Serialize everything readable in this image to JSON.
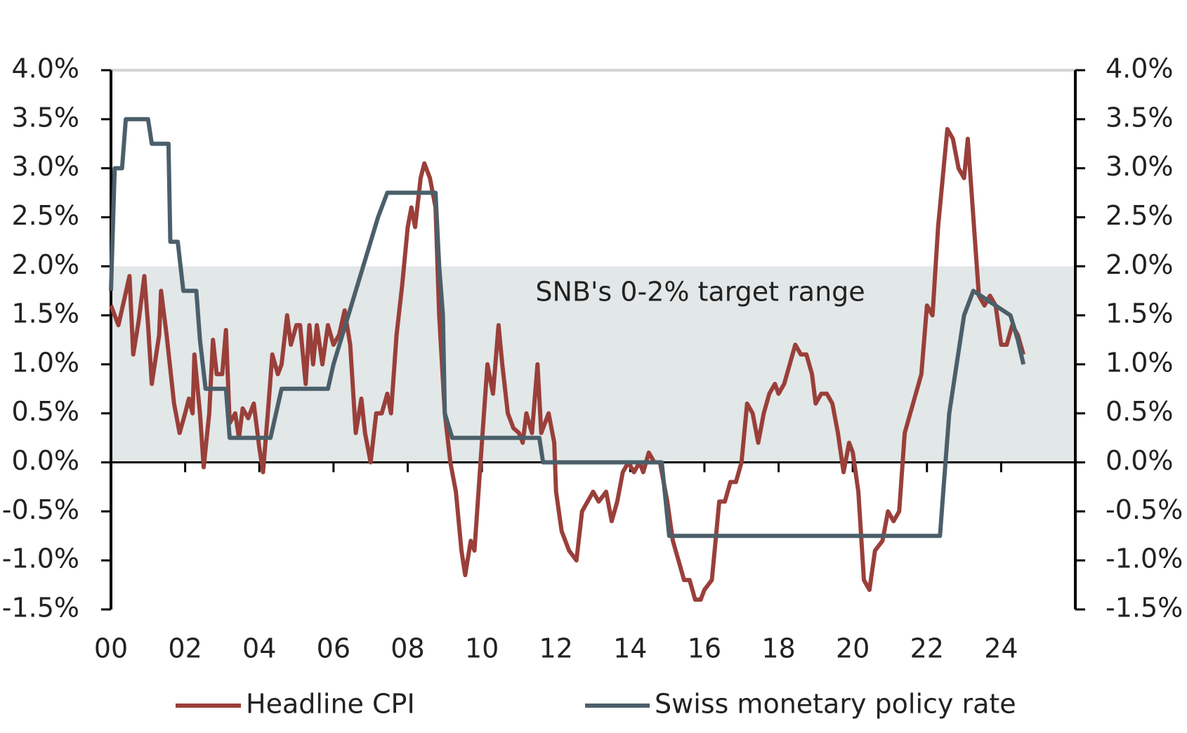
{
  "chart_data": {
    "type": "line",
    "annotation": "SNB's 0-2% target range",
    "target_band": {
      "range": [
        0,
        2
      ],
      "color": "#e2e7e7"
    },
    "xlim": [
      2000,
      2026
    ],
    "xticks": [
      {
        "value": 2000,
        "label": "00"
      },
      {
        "value": 2002,
        "label": "02"
      },
      {
        "value": 2004,
        "label": "04"
      },
      {
        "value": 2006,
        "label": "06"
      },
      {
        "value": 2008,
        "label": "08"
      },
      {
        "value": 2010,
        "label": "10"
      },
      {
        "value": 2012,
        "label": "12"
      },
      {
        "value": 2014,
        "label": "14"
      },
      {
        "value": 2016,
        "label": "16"
      },
      {
        "value": 2018,
        "label": "18"
      },
      {
        "value": 2020,
        "label": "20"
      },
      {
        "value": 2022,
        "label": "22"
      },
      {
        "value": 2024,
        "label": "24"
      }
    ],
    "ylim": [
      -1.5,
      4.0
    ],
    "yticks": [
      {
        "value": -1.5,
        "label": "-1.5%"
      },
      {
        "value": -1.0,
        "label": "-1.0%"
      },
      {
        "value": -0.5,
        "label": "-0.5%"
      },
      {
        "value": 0,
        "label": "0.0%"
      },
      {
        "value": 0.5,
        "label": "0.5%"
      },
      {
        "value": 1.0,
        "label": "1.0%"
      },
      {
        "value": 1.5,
        "label": "1.5%"
      },
      {
        "value": 2.0,
        "label": "2.0%"
      },
      {
        "value": 2.5,
        "label": "2.5%"
      },
      {
        "value": 3.0,
        "label": "3.0%"
      },
      {
        "value": 3.5,
        "label": "3.5%"
      },
      {
        "value": 4.0,
        "label": "4.0%"
      }
    ],
    "y2lim": [
      -1.5,
      4.0
    ],
    "y2ticks": [
      {
        "value": -1.5,
        "label": "-1.5%"
      },
      {
        "value": -1.0,
        "label": "-1.0%"
      },
      {
        "value": -0.5,
        "label": "-0.5%"
      },
      {
        "value": 0,
        "label": "0.0%"
      },
      {
        "value": 0.5,
        "label": "0.5%"
      },
      {
        "value": 1.0,
        "label": "1.0%"
      },
      {
        "value": 1.5,
        "label": "1.5%"
      },
      {
        "value": 2.0,
        "label": "2.0%"
      },
      {
        "value": 2.5,
        "label": "2.5%"
      },
      {
        "value": 3.0,
        "label": "3.0%"
      },
      {
        "value": 3.5,
        "label": "3.5%"
      },
      {
        "value": 4.0,
        "label": "4.0%"
      }
    ],
    "grid": false,
    "series": [
      {
        "name": "Headline CPI",
        "color": "#9a3f3a",
        "x": [
          2000.0,
          2000.2,
          2000.5,
          2000.6,
          2000.75,
          2000.9,
          2001.0,
          2001.1,
          2001.3,
          2001.35,
          2001.5,
          2001.7,
          2001.85,
          2002.0,
          2002.1,
          2002.2,
          2002.25,
          2002.4,
          2002.5,
          2002.65,
          2002.75,
          2002.85,
          2003.0,
          2003.1,
          2003.2,
          2003.35,
          2003.45,
          2003.55,
          2003.7,
          2003.85,
          2004.0,
          2004.1,
          2004.25,
          2004.35,
          2004.5,
          2004.6,
          2004.75,
          2004.85,
          2005.0,
          2005.1,
          2005.25,
          2005.35,
          2005.45,
          2005.55,
          2005.7,
          2005.85,
          2006.0,
          2006.15,
          2006.3,
          2006.45,
          2006.6,
          2006.75,
          2006.85,
          2007.0,
          2007.15,
          2007.3,
          2007.45,
          2007.55,
          2007.7,
          2007.85,
          2008.0,
          2008.1,
          2008.2,
          2008.35,
          2008.45,
          2008.6,
          2008.75,
          2008.85,
          2009.0,
          2009.15,
          2009.3,
          2009.45,
          2009.55,
          2009.7,
          2009.8,
          2010.0,
          2010.15,
          2010.3,
          2010.45,
          2010.55,
          2010.7,
          2010.85,
          2011.0,
          2011.1,
          2011.2,
          2011.35,
          2011.5,
          2011.6,
          2011.8,
          2011.95,
          2012.0,
          2012.15,
          2012.35,
          2012.55,
          2012.7,
          2012.85,
          2013.0,
          2013.15,
          2013.35,
          2013.5,
          2013.65,
          2013.8,
          2013.95,
          2014.1,
          2014.25,
          2014.35,
          2014.5,
          2014.65,
          2014.8,
          2015.0,
          2015.15,
          2015.3,
          2015.45,
          2015.6,
          2015.75,
          2015.9,
          2016.0,
          2016.2,
          2016.3,
          2016.4,
          2016.55,
          2016.7,
          2016.85,
          2017.0,
          2017.15,
          2017.3,
          2017.45,
          2017.6,
          2017.75,
          2017.9,
          2018.0,
          2018.15,
          2018.3,
          2018.45,
          2018.6,
          2018.75,
          2018.9,
          2019.0,
          2019.15,
          2019.3,
          2019.45,
          2019.6,
          2019.75,
          2019.9,
          2020.0,
          2020.15,
          2020.3,
          2020.45,
          2020.6,
          2020.8,
          2020.95,
          2021.1,
          2021.25,
          2021.4,
          2021.55,
          2021.7,
          2021.85,
          2022.0,
          2022.15,
          2022.3,
          2022.45,
          2022.55,
          2022.7,
          2022.85,
          2023.0,
          2023.1,
          2023.25,
          2023.4,
          2023.55,
          2023.7,
          2023.85,
          2024.0,
          2024.15,
          2024.3,
          2024.45,
          2024.6
        ],
        "values": [
          1.6,
          1.4,
          1.9,
          1.1,
          1.45,
          1.9,
          1.4,
          0.8,
          1.3,
          1.75,
          1.3,
          0.6,
          0.3,
          0.5,
          0.65,
          0.5,
          1.1,
          0.5,
          -0.05,
          0.5,
          1.25,
          0.9,
          0.9,
          1.35,
          0.4,
          0.5,
          0.25,
          0.55,
          0.45,
          0.6,
          0.15,
          -0.1,
          0.6,
          1.1,
          0.9,
          1.0,
          1.5,
          1.2,
          1.4,
          1.4,
          0.8,
          1.4,
          1.0,
          1.4,
          1.0,
          1.4,
          1.2,
          1.3,
          1.55,
          1.2,
          0.3,
          0.65,
          0.3,
          0.0,
          0.5,
          0.5,
          0.7,
          0.5,
          1.3,
          1.8,
          2.4,
          2.6,
          2.4,
          2.9,
          3.05,
          2.9,
          2.6,
          1.5,
          0.5,
          0.0,
          -0.3,
          -0.9,
          -1.15,
          -0.8,
          -0.9,
          0.2,
          1.0,
          0.7,
          1.4,
          1.0,
          0.5,
          0.35,
          0.3,
          0.2,
          0.5,
          0.3,
          1.0,
          0.3,
          0.5,
          0.2,
          -0.3,
          -0.7,
          -0.9,
          -1.0,
          -0.5,
          -0.4,
          -0.3,
          -0.4,
          -0.3,
          -0.6,
          -0.4,
          -0.1,
          0.0,
          -0.1,
          0.0,
          -0.1,
          0.1,
          0.0,
          0.0,
          -0.4,
          -0.8,
          -1.0,
          -1.2,
          -1.2,
          -1.4,
          -1.4,
          -1.3,
          -1.2,
          -0.8,
          -0.4,
          -0.4,
          -0.2,
          -0.2,
          0.0,
          0.6,
          0.5,
          0.2,
          0.5,
          0.7,
          0.8,
          0.7,
          0.8,
          1.0,
          1.2,
          1.1,
          1.1,
          0.9,
          0.6,
          0.7,
          0.7,
          0.6,
          0.3,
          -0.1,
          0.2,
          0.1,
          -0.3,
          -1.2,
          -1.3,
          -0.9,
          -0.8,
          -0.5,
          -0.6,
          -0.5,
          0.3,
          0.5,
          0.7,
          0.9,
          1.6,
          1.5,
          2.4,
          3.0,
          3.4,
          3.3,
          3.0,
          2.9,
          3.3,
          2.5,
          1.7,
          1.6,
          1.7,
          1.6,
          1.2,
          1.2,
          1.4,
          1.3,
          1.1
        ]
      },
      {
        "name": "Swiss monetary policy rate",
        "color": "#4b5f6a",
        "axis": "y2",
        "x": [
          2000.0,
          2000.1,
          2000.3,
          2000.4,
          2001.0,
          2001.1,
          2001.55,
          2001.6,
          2001.8,
          2001.95,
          2002.3,
          2002.4,
          2002.55,
          2003.1,
          2003.2,
          2004.3,
          2004.45,
          2004.6,
          2005.85,
          2006.0,
          2006.2,
          2006.4,
          2006.6,
          2006.8,
          2007.0,
          2007.2,
          2007.45,
          2008.75,
          2008.85,
          2008.95,
          2009.0,
          2009.2,
          2011.55,
          2011.65,
          2014.85,
          2015.05,
          2022.35,
          2022.45,
          2022.6,
          2022.8,
          2023.0,
          2023.25,
          2024.25,
          2024.45,
          2024.6
        ],
        "values": [
          1.75,
          3.0,
          3.0,
          3.5,
          3.5,
          3.25,
          3.25,
          2.25,
          2.25,
          1.75,
          1.75,
          1.25,
          0.75,
          0.75,
          0.25,
          0.25,
          0.5,
          0.75,
          0.75,
          1.0,
          1.25,
          1.5,
          1.75,
          2.0,
          2.25,
          2.5,
          2.75,
          2.75,
          2.0,
          1.5,
          0.5,
          0.25,
          0.25,
          0.0,
          0.0,
          -0.75,
          -0.75,
          -0.25,
          0.5,
          1.0,
          1.5,
          1.75,
          1.5,
          1.25,
          1.0
        ]
      }
    ]
  }
}
